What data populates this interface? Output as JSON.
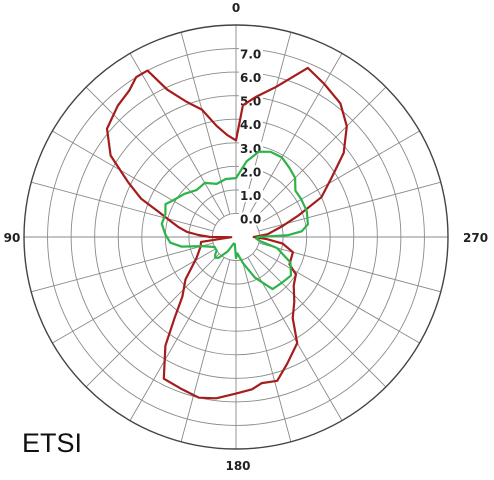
{
  "chart_data": {
    "type": "polar-line",
    "corner_label": "ETSI",
    "angle_labels": [
      "0",
      "90",
      "180",
      "270"
    ],
    "angle_direction": "counter-clockwise",
    "zero_at": "top",
    "radial_ticks": [
      "0.0",
      "1.0",
      "2.0",
      "3.0",
      "4.0",
      "5.0",
      "6.0",
      "7.0"
    ],
    "radial_range": [
      -1,
      8
    ],
    "radial_rings": 9,
    "spokes_every_deg": 15,
    "grid": true,
    "series": [
      {
        "color": "#a51c1c",
        "points": [
          [
            0,
            3.1
          ],
          [
            5,
            3.35
          ],
          [
            10,
            3.8
          ],
          [
            15,
            4.6
          ],
          [
            20,
            5.1
          ],
          [
            25,
            5.9
          ],
          [
            28,
            7.0
          ],
          [
            32,
            7.0
          ],
          [
            36,
            6.7
          ],
          [
            42,
            6.5
          ],
          [
            50,
            6.15
          ],
          [
            57,
            5.35
          ],
          [
            63,
            4.15
          ],
          [
            68,
            3.35
          ],
          [
            72,
            2.45
          ],
          [
            76,
            1.9
          ],
          [
            80,
            1.5
          ],
          [
            84,
            1.1
          ],
          [
            87,
            0.6
          ],
          [
            90,
            0.1
          ],
          [
            93,
            -0.8
          ],
          [
            98,
            0.5
          ],
          [
            105,
            0.55
          ],
          [
            118,
            0.9
          ],
          [
            130,
            1.8
          ],
          [
            138,
            2.4
          ],
          [
            143,
            3.35
          ],
          [
            147,
            4.5
          ],
          [
            153,
            5.75
          ],
          [
            160,
            5.85
          ],
          [
            167,
            6.0
          ],
          [
            173,
            5.9
          ],
          [
            180,
            5.65
          ],
          [
            186,
            5.5
          ],
          [
            190,
            5.3
          ],
          [
            196,
            5.35
          ],
          [
            202,
            4.8
          ],
          [
            210,
            4.2
          ],
          [
            215,
            3.2
          ],
          [
            222,
            2.7
          ],
          [
            230,
            2.2
          ],
          [
            238,
            2.0
          ],
          [
            243,
            1.55
          ],
          [
            255,
            1.5
          ],
          [
            262,
            1.0
          ],
          [
            266,
            0.3
          ],
          [
            270,
            -0.25
          ],
          [
            275,
            0.35
          ],
          [
            283,
            1.0
          ],
          [
            289,
            1.8
          ],
          [
            295,
            3.0
          ],
          [
            302,
            3.8
          ],
          [
            308,
            4.8
          ],
          [
            315,
            5.65
          ],
          [
            322,
            6.2
          ],
          [
            330,
            6.5
          ],
          [
            337,
            6.8
          ],
          [
            345,
            5.6
          ],
          [
            352,
            5.0
          ],
          [
            357,
            4.6
          ],
          [
            360,
            3.1
          ]
        ]
      },
      {
        "color": "#2cb34a",
        "points": [
          [
            0,
            1.5
          ],
          [
            10,
            1.5
          ],
          [
            20,
            1.4
          ],
          [
            30,
            1.65
          ],
          [
            40,
            1.6
          ],
          [
            50,
            1.85
          ],
          [
            60,
            2.1
          ],
          [
            65,
            2.3
          ],
          [
            72,
            2.15
          ],
          [
            80,
            2.2
          ],
          [
            88,
            2.0
          ],
          [
            95,
            1.8
          ],
          [
            100,
            1.35
          ],
          [
            105,
            0.5
          ],
          [
            115,
            0.0
          ],
          [
            120,
            0.0
          ],
          [
            125,
            0.0
          ],
          [
            130,
            0.15
          ],
          [
            135,
            0.25
          ],
          [
            140,
            0.15
          ],
          [
            150,
            -0.3
          ],
          [
            160,
            -0.7
          ],
          [
            170,
            -0.7
          ],
          [
            180,
            -0.1
          ],
          [
            185,
            -0.3
          ],
          [
            195,
            0.15
          ],
          [
            205,
            0.9
          ],
          [
            215,
            1.7
          ],
          [
            225,
            1.75
          ],
          [
            235,
            1.85
          ],
          [
            245,
            1.55
          ],
          [
            255,
            0.8
          ],
          [
            260,
            0.05
          ],
          [
            266,
            -0.15
          ],
          [
            270,
            -0.05
          ],
          [
            272,
            1.2
          ],
          [
            275,
            1.8
          ],
          [
            280,
            2.1
          ],
          [
            290,
            2.2
          ],
          [
            300,
            2.2
          ],
          [
            308,
            2.2
          ],
          [
            315,
            2.55
          ],
          [
            322,
            2.7
          ],
          [
            330,
            2.9
          ],
          [
            338,
            2.9
          ],
          [
            345,
            2.75
          ],
          [
            352,
            2.25
          ],
          [
            360,
            1.5
          ]
        ]
      }
    ]
  }
}
